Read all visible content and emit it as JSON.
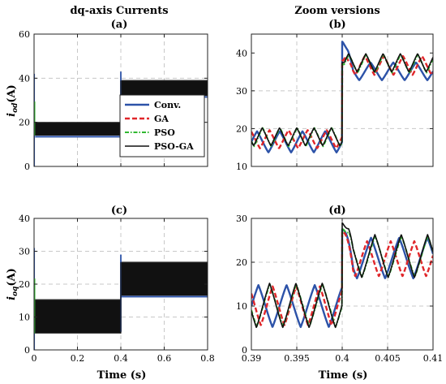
{
  "figure": {
    "left_heading": "dq-axis Currents",
    "right_heading": "Zoom versions"
  },
  "colors": {
    "Conv.": "#2c52a8",
    "GA": "#e0262a",
    "PSO": "#2fb82f",
    "PSO-GA": "#111111"
  },
  "chart_data": [
    {
      "id": "a",
      "type": "line",
      "panel_label": "(a)",
      "xlabel": "",
      "ylabel_main": "i",
      "ylabel_sub": "od",
      "ylabel_unit": "(A)",
      "xlim": [
        0,
        0.8
      ],
      "ylim": [
        0,
        60
      ],
      "xticks": [
        0,
        0.2,
        0.4,
        0.6,
        0.8
      ],
      "xtick_labels": [
        "",
        "",
        "",
        "",
        ""
      ],
      "yticks": [
        0,
        20,
        40,
        60
      ],
      "ytick_labels": [
        "0",
        "20",
        "40",
        "60"
      ],
      "grid": true,
      "legend": {
        "placement": "inside-right",
        "entries": [
          "Conv.",
          "GA",
          "PSO",
          "PSO-GA"
        ]
      },
      "band": {
        "segments": [
          {
            "x_start": 0.005,
            "x_end": 0.4,
            "low": 14,
            "high": 20,
            "conv_level": 13.5
          },
          {
            "x_start": 0.4,
            "x_end": 0.8,
            "low": 32,
            "high": 39,
            "conv_level": 31.5
          }
        ],
        "start_spike": [
          0,
          42
        ],
        "step_spike": 43
      }
    },
    {
      "id": "b",
      "type": "line",
      "panel_label": "(b)",
      "xlabel": "",
      "xlim": [
        0.39,
        0.41
      ],
      "ylim": [
        10,
        45
      ],
      "xticks": [
        0.39,
        0.395,
        0.4,
        0.405,
        0.41
      ],
      "xtick_labels": [
        "",
        "",
        "",
        "",
        ""
      ],
      "yticks": [
        10,
        20,
        30,
        40
      ],
      "ytick_labels": [
        "10",
        "20",
        "30",
        "40"
      ],
      "grid": true,
      "series": [
        {
          "name": "Conv.",
          "period": 0.0025,
          "pre": [
            13.7,
            19.3
          ],
          "post": [
            32.8,
            37.5
          ],
          "peak": 43,
          "phase": 0.0
        },
        {
          "name": "GA",
          "period": 0.0021,
          "pre": [
            14.8,
            19.6
          ],
          "post": [
            34.2,
            39.2
          ],
          "peak": 38,
          "phase": 0.3
        },
        {
          "name": "PSO",
          "period": 0.0019,
          "pre": [
            15.3,
            20.2
          ],
          "post": [
            34.8,
            39.6
          ],
          "peak": 37,
          "phase": 0.6
        },
        {
          "name": "PSO-GA",
          "period": 0.0019,
          "pre": [
            15.5,
            20.2
          ],
          "post": [
            35.0,
            39.8
          ],
          "peak": 37.5,
          "phase": 0.62
        }
      ]
    },
    {
      "id": "c",
      "type": "line",
      "panel_label": "(c)",
      "xlabel": "Time (s)",
      "ylabel_main": "i",
      "ylabel_sub": "oq",
      "ylabel_unit": "(A)",
      "xlim": [
        0,
        0.8
      ],
      "ylim": [
        0,
        40
      ],
      "xticks": [
        0,
        0.2,
        0.4,
        0.6,
        0.8
      ],
      "xtick_labels": [
        "0",
        "0.2",
        "0.4",
        "0.6",
        "0.8"
      ],
      "yticks": [
        0,
        10,
        20,
        30,
        40
      ],
      "ytick_labels": [
        "0",
        "10",
        "20",
        "30",
        "40"
      ],
      "grid": true,
      "band": {
        "segments": [
          {
            "x_start": 0.005,
            "x_end": 0.4,
            "low": 5,
            "high": 15.3,
            "conv_level": 5.5
          },
          {
            "x_start": 0.4,
            "x_end": 0.8,
            "low": 16.5,
            "high": 26.7,
            "conv_level": 16.2
          }
        ],
        "start_spike": [
          0,
          31
        ],
        "step_spike": 29
      }
    },
    {
      "id": "d",
      "type": "line",
      "panel_label": "(d)",
      "xlabel": "Time (s)",
      "xlim": [
        0.39,
        0.41
      ],
      "ylim": [
        0,
        30
      ],
      "xticks": [
        0.39,
        0.395,
        0.4,
        0.405,
        0.41
      ],
      "xtick_labels": [
        "0.39",
        "0.395",
        "0.4",
        "0.405",
        "0.41"
      ],
      "yticks": [
        0,
        10,
        20,
        30
      ],
      "ytick_labels": [
        "0",
        "10",
        "20",
        "30"
      ],
      "grid": true,
      "series": [
        {
          "name": "Conv.",
          "period": 0.0031,
          "pre": [
            5.2,
            14.8
          ],
          "post": [
            16.3,
            25.6
          ],
          "peak": 27.5,
          "phase": 0.0
        },
        {
          "name": "GA",
          "period": 0.0026,
          "pre": [
            5.6,
            14.5
          ],
          "post": [
            16.8,
            24.8
          ],
          "peak": 27,
          "phase": 0.35
        },
        {
          "name": "PSO",
          "period": 0.0029,
          "pre": [
            5.3,
            15.0
          ],
          "post": [
            16.6,
            26.0
          ],
          "peak": 27.8,
          "phase": 0.55
        },
        {
          "name": "PSO-GA",
          "period": 0.0029,
          "pre": [
            5.1,
            15.2
          ],
          "post": [
            16.5,
            26.3
          ],
          "peak": 29,
          "phase": 0.56
        }
      ]
    }
  ]
}
